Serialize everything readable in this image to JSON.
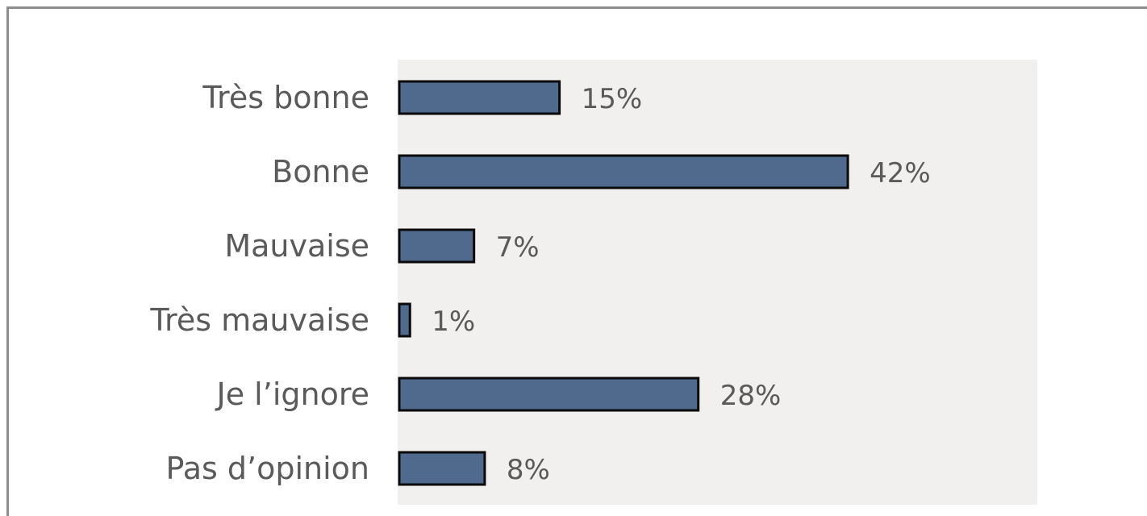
{
  "chart_data": {
    "type": "bar",
    "orientation": "horizontal",
    "categories": [
      "Très bonne",
      "Bonne",
      "Mauvaise",
      "Très mauvaise",
      "Je l’ignore",
      "Pas d’opinion"
    ],
    "values": [
      15,
      42,
      7,
      1,
      28,
      8
    ],
    "value_labels": [
      "15%",
      "42%",
      "7%",
      "1%",
      "28%",
      "8%"
    ],
    "unit": "%",
    "xlim": [
      0,
      60
    ],
    "grid": false,
    "legend": "none",
    "colors": {
      "bar": "#4f6a8c",
      "bar_border": "#0a0a0a",
      "plot_background": "#f2efef",
      "text": "#5a5a5a"
    }
  }
}
